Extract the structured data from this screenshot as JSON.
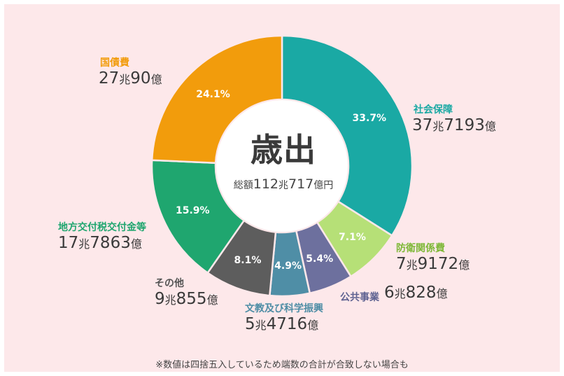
{
  "center": {
    "title": "歳出",
    "total_prefix": "総額",
    "total_num1": "112",
    "total_unit1": "兆",
    "total_num2": "717",
    "total_unit2": "億円"
  },
  "note": "※数値は四捨五入しているため端数の合計が合致しない場合も",
  "chart_data": {
    "type": "pie",
    "title": "歳出",
    "subtitle": "総額112兆717億円",
    "unit": "%",
    "slices": [
      {
        "name": "社会保障",
        "value": 33.7,
        "label": "33.7%",
        "amount": "37兆7193億",
        "amount_parts": [
          "37",
          "兆",
          "7193",
          "億"
        ],
        "color": "#1aa9a4",
        "name_color": "#1aa9a4"
      },
      {
        "name": "防衛関係費",
        "value": 7.1,
        "label": "7.1%",
        "amount": "7兆9172億",
        "amount_parts": [
          "7",
          "兆",
          "9172",
          "億"
        ],
        "color": "#b6e077",
        "name_color": "#7fb838"
      },
      {
        "name": "公共事業",
        "value": 5.4,
        "label": "5.4%",
        "amount": "6兆828億",
        "amount_parts": [
          "6",
          "兆",
          "828",
          "億"
        ],
        "color": "#6d709e",
        "name_color": "#5e6291"
      },
      {
        "name": "文教及び科学振興",
        "value": 4.9,
        "label": "4.9%",
        "amount": "5兆4716億",
        "amount_parts": [
          "5",
          "兆",
          "4716",
          "億"
        ],
        "color": "#4f8ea6",
        "name_color": "#4f8ea6"
      },
      {
        "name": "その他",
        "value": 8.1,
        "label": "8.1%",
        "amount": "9兆855億",
        "amount_parts": [
          "9",
          "兆",
          "855",
          "億"
        ],
        "color": "#5d5d5d",
        "name_color": "#555555"
      },
      {
        "name": "地方交付税交付金等",
        "value": 15.9,
        "label": "15.9%",
        "amount": "17兆7863億",
        "amount_parts": [
          "17",
          "兆",
          "7863",
          "億"
        ],
        "color": "#1fa66f",
        "name_color": "#1fa66f"
      },
      {
        "name": "国債費",
        "value": 24.1,
        "label": "24.1%",
        "amount": "27兆90億",
        "amount_parts": [
          "27",
          "兆",
          "90",
          "億"
        ],
        "color": "#f29c0c",
        "name_color": "#f29c0c"
      }
    ]
  }
}
